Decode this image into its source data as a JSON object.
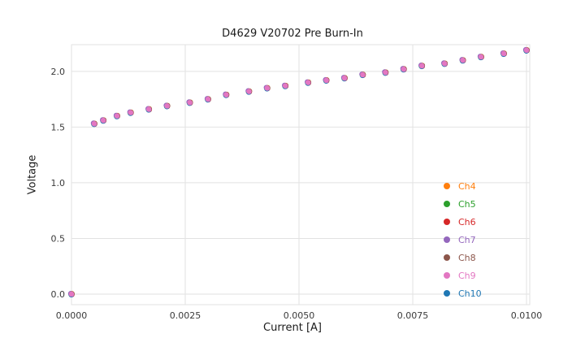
{
  "chart_data": {
    "type": "scatter",
    "title": "D4629 V20702 Pre Burn-In",
    "xlabel": "Current [A]",
    "ylabel": "Voltage",
    "xlim": [
      0,
      0.010071
    ],
    "ylim": [
      -0.095,
      2.24
    ],
    "grid": true,
    "legend_position": "lower-right-inside",
    "x_tick_values": [
      0,
      0.0025,
      0.005,
      0.0075,
      0.01
    ],
    "x_tick_labels": [
      "0.0000",
      "0.0025",
      "0.0050",
      "0.0075",
      "0.0100"
    ],
    "y_tick_values": [
      0,
      0.5,
      1.0,
      1.5,
      2.0
    ],
    "y_tick_labels": [
      "0.0",
      "0.5",
      "1.0",
      "1.5",
      "2.0"
    ],
    "x": [
      0.0,
      0.0005,
      0.0007,
      0.001,
      0.0013,
      0.0017,
      0.0021,
      0.0026,
      0.003,
      0.0034,
      0.0039,
      0.0043,
      0.0047,
      0.0052,
      0.0056,
      0.006,
      0.0064,
      0.0069,
      0.0073,
      0.0077,
      0.0082,
      0.0086,
      0.009,
      0.0095,
      0.01
    ],
    "shared_y": [
      0.0,
      1.53,
      1.56,
      1.6,
      1.63,
      1.66,
      1.69,
      1.72,
      1.75,
      1.79,
      1.82,
      1.85,
      1.87,
      1.9,
      1.92,
      1.94,
      1.97,
      1.99,
      2.02,
      2.05,
      2.07,
      2.1,
      2.13,
      2.16,
      2.19
    ],
    "series_overlap": true,
    "series": [
      {
        "name": "Ch4",
        "color": "#ff7f0e"
      },
      {
        "name": "Ch5",
        "color": "#2ca02c"
      },
      {
        "name": "Ch6",
        "color": "#d62728"
      },
      {
        "name": "Ch7",
        "color": "#9467bd"
      },
      {
        "name": "Ch8",
        "color": "#8c564b"
      },
      {
        "name": "Ch9",
        "color": "#e377c2"
      },
      {
        "name": "Ch10",
        "color": "#1f77b4"
      }
    ]
  },
  "style": {
    "grid_color": "#e2e2e2",
    "border_color": "#e2e2e2",
    "tick_label_color": "#3a3a3a"
  }
}
